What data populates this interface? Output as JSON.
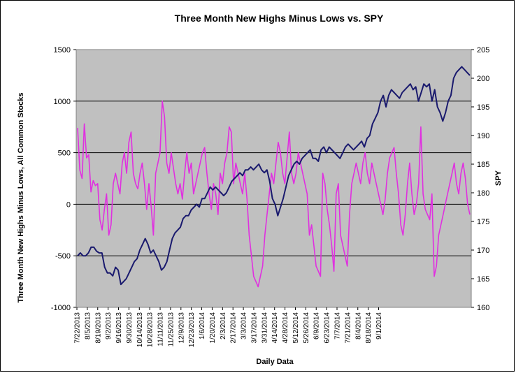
{
  "chart_data": {
    "type": "line",
    "title": "Three Month New Highs Minus Lows vs. SPY",
    "xlabel": "Daily Data",
    "ylabel_left": "Three Month New Highs Minus Lows, All  Common Stocks",
    "ylabel_right": "SPY",
    "ylim_left": [
      -1000,
      1500
    ],
    "ylim_right": [
      160,
      205
    ],
    "yticks_left": [
      1500,
      1000,
      500,
      0,
      -500,
      -1000
    ],
    "yticks_right": [
      205,
      200,
      195,
      190,
      185,
      180,
      175,
      170,
      165,
      160
    ],
    "x_ticks": [
      "7/22/2013",
      "8/5/2013",
      "8/19/2013",
      "9/2/2013",
      "9/16/2013",
      "9/30/2013",
      "10/14/2013",
      "10/28/2013",
      "11/11/2013",
      "11/25/2013",
      "12/9/2013",
      "12/23/2013",
      "1/6/2014",
      "1/20/2014",
      "2/3/2014",
      "2/17/2014",
      "3/3/2014",
      "3/17/2014",
      "3/31/2014",
      "4/14/2014",
      "4/28/2014",
      "5/12/2014",
      "5/26/2014",
      "6/9/2014",
      "6/23/2014",
      "7/7/2014",
      "7/21/2014",
      "8/4/2014",
      "8/18/2014",
      "9/1/2014"
    ],
    "grid": "horizontal major lines",
    "plot_background": "#c0c0c0",
    "series": [
      {
        "name": "",
        "axis": "left",
        "color": "#e030e0",
        "values": [
          740,
          330,
          250,
          780,
          450,
          480,
          120,
          230,
          180,
          200,
          -150,
          -250,
          -50,
          100,
          -300,
          -200,
          200,
          300,
          200,
          100,
          400,
          500,
          300,
          600,
          700,
          300,
          200,
          150,
          300,
          400,
          200,
          -50,
          200,
          -20,
          -300,
          300,
          400,
          500,
          1000,
          850,
          400,
          300,
          500,
          350,
          200,
          100,
          200,
          50,
          300,
          500,
          300,
          400,
          100,
          200,
          300,
          400,
          500,
          550,
          300,
          100,
          -50,
          200,
          100,
          -100,
          300,
          200,
          400,
          500,
          750,
          700,
          200,
          400,
          300,
          200,
          100,
          300,
          50,
          -300,
          -500,
          -700,
          -750,
          -800,
          -700,
          -600,
          -300,
          -100,
          100,
          300,
          200,
          400,
          600,
          500,
          300,
          200,
          450,
          700,
          300,
          200,
          300,
          500,
          400,
          300,
          200,
          100,
          -300,
          -200,
          -400,
          -600,
          -650,
          -700,
          300,
          200,
          -50,
          -200,
          -400,
          -650,
          100,
          200,
          -300,
          -400,
          -500,
          -600,
          -100,
          200,
          300,
          400,
          300,
          200,
          400,
          500,
          300,
          200,
          400,
          300,
          200,
          100,
          0,
          -100,
          50,
          300,
          450,
          500,
          550,
          300,
          100,
          -200,
          -300,
          -100,
          200,
          400,
          100,
          -100,
          0,
          200,
          750,
          100,
          -50,
          -100,
          -150,
          100,
          -700,
          -600,
          -300,
          -200,
          -100,
          0,
          100,
          200,
          300,
          400,
          200,
          100,
          300,
          400,
          250,
          0,
          -100
        ],
        "note_values_are_approximate": ""
      },
      {
        "name": "",
        "axis": "right",
        "color": "#1a1a6e",
        "values": [
          169,
          169.5,
          169,
          169,
          169.5,
          170.5,
          170.5,
          169.8,
          169.5,
          169.5,
          167,
          166,
          166,
          165.5,
          167,
          166.5,
          164,
          164.5,
          165,
          166,
          167,
          168,
          168.5,
          170,
          171,
          172,
          171,
          169.5,
          170,
          169,
          168,
          166.5,
          167,
          168,
          170,
          172,
          173,
          173.5,
          174,
          175.5,
          176,
          176,
          177,
          177.5,
          178,
          177.5,
          179,
          179,
          180,
          181,
          180.5,
          181,
          180.5,
          180,
          179.5,
          180,
          181,
          182,
          182.5,
          183,
          183.5,
          183,
          184,
          184,
          184.5,
          184,
          184.5,
          185,
          184,
          183.5,
          184,
          182,
          179,
          178,
          176,
          177.5,
          179,
          181,
          183,
          184,
          185,
          185.5,
          185,
          186,
          186.5,
          187,
          187.5,
          186,
          186,
          185.5,
          187.5,
          188,
          187,
          188,
          187.5,
          187,
          186.5,
          186,
          187,
          188,
          188.5,
          188,
          187.5,
          188,
          188.5,
          189,
          188,
          189.5,
          190,
          192,
          193,
          194,
          196,
          197,
          195,
          197,
          198,
          197.5,
          197,
          196.5,
          197.5,
          198,
          198.5,
          199,
          198,
          198.5,
          196,
          197.5,
          199,
          198.5,
          199,
          196,
          198,
          195,
          194,
          192.5,
          194,
          196,
          197,
          200,
          201,
          201.5,
          202,
          201.5,
          201,
          200.5
        ]
      }
    ]
  }
}
